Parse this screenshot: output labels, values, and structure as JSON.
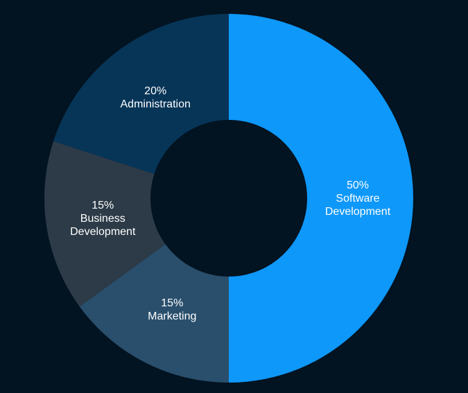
{
  "background": "#021321",
  "chart_data": {
    "type": "pie",
    "title": "",
    "hole_color": "#021321",
    "slices": [
      {
        "key": "software-development",
        "percent_label": "50%",
        "label_lines": [
          "Software",
          "Development"
        ],
        "value": 50,
        "color": "#0E98FA"
      },
      {
        "key": "marketing",
        "percent_label": "15%",
        "label_lines": [
          "Marketing"
        ],
        "value": 15,
        "color": "#2A4F6C"
      },
      {
        "key": "business-development",
        "percent_label": "15%",
        "label_lines": [
          "Business",
          "Development"
        ],
        "value": 15,
        "color": "#2D3B48"
      },
      {
        "key": "administration",
        "percent_label": "20%",
        "label_lines": [
          "Administration"
        ],
        "value": 20,
        "color": "#073558"
      }
    ]
  }
}
